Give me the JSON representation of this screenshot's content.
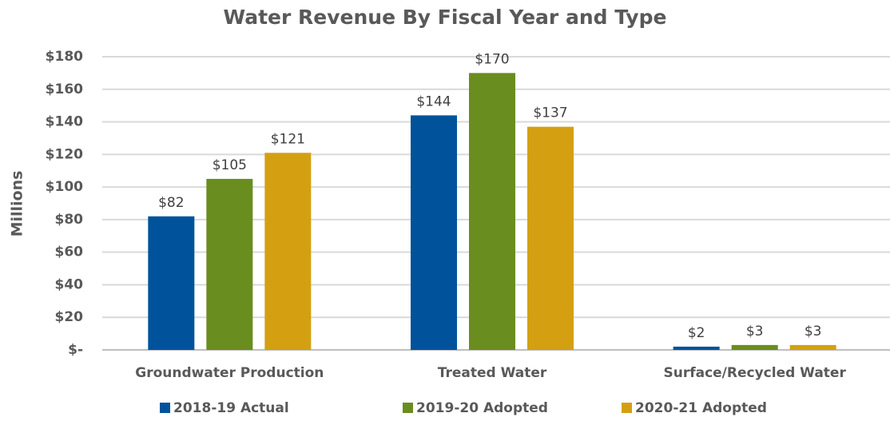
{
  "chart_data": {
    "type": "bar",
    "title": "Water Revenue By Fiscal Year and Type",
    "y_label": "Millions",
    "categories": [
      "Groundwater Production",
      "Treated Water",
      "Surface/Recycled Water"
    ],
    "series": [
      {
        "name": "2018-19 Actual",
        "color": "#00539b",
        "values": [
          82,
          144,
          2
        ],
        "value_labels": [
          "$82",
          "$144",
          "$2"
        ]
      },
      {
        "name": "2019-20 Adopted",
        "color": "#6a8d1f",
        "values": [
          105,
          170,
          3
        ],
        "value_labels": [
          "$105",
          "$170",
          "$3"
        ]
      },
      {
        "name": "2020-21 Adopted",
        "color": "#d4a012",
        "values": [
          121,
          137,
          3
        ],
        "value_labels": [
          "$121",
          "$137",
          "$3"
        ]
      }
    ],
    "ylim": [
      0,
      180
    ],
    "yticks": [
      {
        "value": 0,
        "label": "$-"
      },
      {
        "value": 20,
        "label": "$20"
      },
      {
        "value": 40,
        "label": "$40"
      },
      {
        "value": 60,
        "label": "$60"
      },
      {
        "value": 80,
        "label": "$80"
      },
      {
        "value": 100,
        "label": "$100"
      },
      {
        "value": 120,
        "label": "$120"
      },
      {
        "value": 140,
        "label": "$140"
      },
      {
        "value": 160,
        "label": "$160"
      },
      {
        "value": 180,
        "label": "$180"
      }
    ],
    "grid": true,
    "legend": "bottom"
  }
}
